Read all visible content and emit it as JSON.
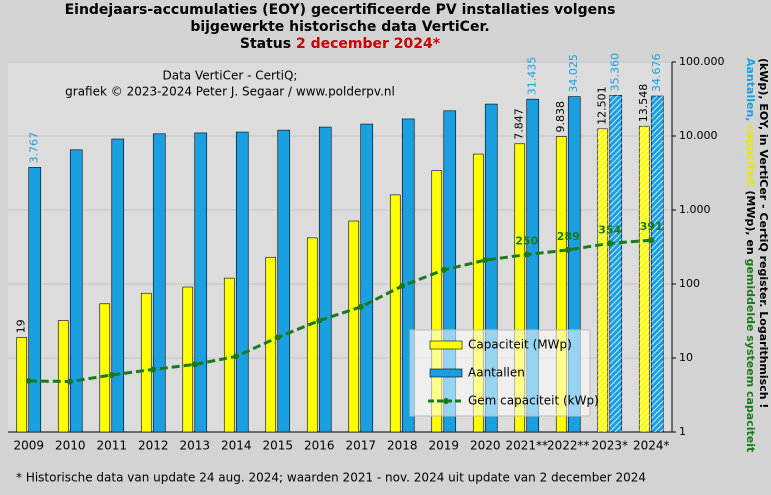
{
  "chart_data": {
    "type": "bar",
    "title_lines": [
      "Eindejaars-accumulaties (EOY) gecertificeerde PV installaties volgens",
      "bijgewerkte historische data VertiCer."
    ],
    "status_label": "Status",
    "status_date": "2 december 2024*",
    "status_color": "#cc0000",
    "annotation_lines": [
      "Data VertiCer - CertiQ;",
      "grafiek © 2023-2024 Peter J. Segaar / www.polderpv.nl"
    ],
    "footnote": "* Historische data van update 24 aug. 2024; waarden 2021 - nov. 2024 uit update van 2 december 2024",
    "ylabel_lines": [
      [
        {
          "text": "Aantallen,",
          "color": "#1aa0e0"
        },
        {
          "text": " capaciteit",
          "color": "#e8e800"
        },
        {
          "text": " (MWp), en ",
          "color": "#000000"
        },
        {
          "text": "gemiddelde systeem capaciteit",
          "color": "#1a7a1a"
        }
      ],
      [
        {
          "text": "(kWp), EOY, in VertiCer - CertiQ register. Logarithmisch !",
          "color": "#000000"
        }
      ]
    ],
    "categories": [
      "2009",
      "2010",
      "2011",
      "2012",
      "2013",
      "2014",
      "2015",
      "2016",
      "2017",
      "2018",
      "2019",
      "2020",
      "2021**",
      "2022**",
      "2023*",
      "2024*"
    ],
    "hatched": [
      false,
      false,
      false,
      false,
      false,
      false,
      false,
      false,
      false,
      false,
      false,
      false,
      false,
      false,
      true,
      true
    ],
    "series": [
      {
        "name": "Capaciteit (MWp)",
        "color": "#ffff00",
        "kind": "bar",
        "values": [
          19,
          32,
          54,
          75,
          91,
          120,
          230,
          420,
          710,
          1600,
          3400,
          5700,
          7847,
          9838,
          12501,
          13548
        ],
        "value_labels": [
          "19",
          null,
          null,
          null,
          null,
          null,
          null,
          null,
          null,
          null,
          null,
          null,
          "7.847",
          "9.838",
          "12.501",
          "13.548"
        ]
      },
      {
        "name": "Aantallen",
        "color": "#1aa0e0",
        "kind": "bar",
        "values": [
          3767,
          6500,
          9100,
          10700,
          11000,
          11300,
          12000,
          13200,
          14500,
          17000,
          21900,
          27000,
          31435,
          34025,
          35360,
          34676
        ],
        "value_labels": [
          "3.767",
          null,
          null,
          null,
          null,
          null,
          null,
          null,
          null,
          null,
          null,
          null,
          "31.435",
          "34.025",
          "35.360",
          "34.676"
        ]
      },
      {
        "name": "Gem capaciteit (kWp)",
        "color": "#1a7a1a",
        "kind": "line",
        "values": [
          4.9,
          4.8,
          5.9,
          7,
          8.2,
          10.5,
          19,
          32,
          49,
          94,
          155,
          210,
          250,
          289,
          354,
          391
        ],
        "value_labels": [
          null,
          null,
          null,
          null,
          null,
          null,
          null,
          null,
          null,
          null,
          null,
          null,
          "250",
          "289",
          "354",
          "391"
        ]
      }
    ],
    "ylim": [
      1,
      100000
    ],
    "yticks": [
      1,
      10,
      100,
      {
        "value": 1000,
        "label": "1.000"
      },
      {
        "value": 10000,
        "label": "10.000"
      },
      {
        "value": 100000,
        "label": "100.000"
      }
    ],
    "log_scale": true,
    "grid": true,
    "legend": "lower right"
  }
}
